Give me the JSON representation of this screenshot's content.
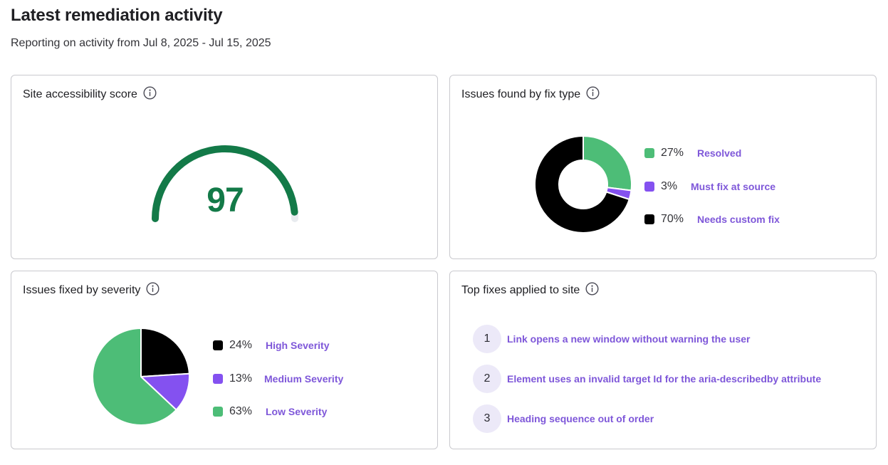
{
  "header": {
    "title": "Latest remediation activity",
    "subtitle": "Reporting on activity from Jul 8, 2025 - Jul 15, 2025"
  },
  "score_card": {
    "title": "Site accessibility score",
    "info_icon": "info-circle-icon",
    "score": "97",
    "score_fraction": 0.97,
    "color": "#137a48",
    "track_color": "#e8ebef"
  },
  "fix_type_card": {
    "title": "Issues found by fix type",
    "info_icon": "info-circle-icon",
    "items": [
      {
        "pct": "27%",
        "label": "Resolved",
        "value": 27,
        "color": "#4dbd77"
      },
      {
        "pct": "3%",
        "label": "Must fix at source",
        "value": 3,
        "color": "#8451f0"
      },
      {
        "pct": "70%",
        "label": "Needs custom fix",
        "value": 70,
        "color": "#000000"
      }
    ]
  },
  "severity_card": {
    "title": "Issues fixed by severity",
    "info_icon": "info-circle-icon",
    "items": [
      {
        "pct": "24%",
        "label": "High Severity",
        "value": 24,
        "color": "#000000"
      },
      {
        "pct": "13%",
        "label": "Medium Severity",
        "value": 13,
        "color": "#8451f0"
      },
      {
        "pct": "63%",
        "label": "Low Severity",
        "value": 63,
        "color": "#4dbd77"
      }
    ]
  },
  "top_fixes_card": {
    "title": "Top fixes applied to site",
    "info_icon": "info-circle-icon",
    "items": [
      {
        "num": "1",
        "text": "Link opens a new window without warning the user"
      },
      {
        "num": "2",
        "text": "Element uses an invalid target Id for the aria-describedby attribute"
      },
      {
        "num": "3",
        "text": "Heading sequence out of order"
      }
    ]
  },
  "chart_data": [
    {
      "type": "pie",
      "categories": [
        "Resolved",
        "Must fix at source",
        "Needs custom fix"
      ],
      "values": [
        27,
        3,
        70
      ]
    },
    {
      "type": "pie",
      "categories": [
        "High Severity",
        "Medium Severity",
        "Low Severity"
      ],
      "values": [
        24,
        13,
        63
      ]
    }
  ]
}
